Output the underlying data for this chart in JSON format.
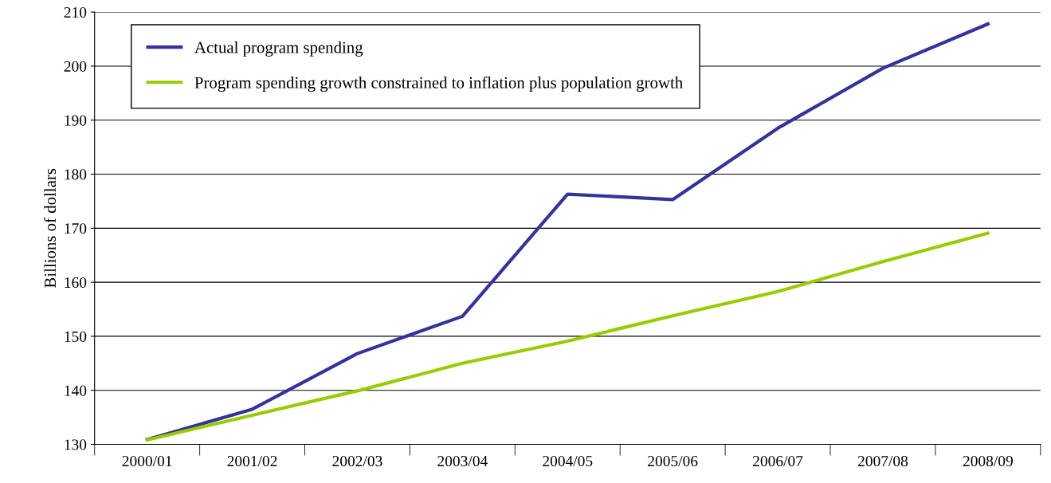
{
  "chart_data": {
    "type": "line",
    "ylabel": "Billions of dollars",
    "categories": [
      "2000/01",
      "2001/02",
      "2002/03",
      "2003/04",
      "2004/05",
      "2005/06",
      "2006/07",
      "2007/08",
      "2008/09"
    ],
    "series": [
      {
        "name": "Actual program spending",
        "color": "#333399",
        "values": [
          130.9,
          136.5,
          146.8,
          153.7,
          176.3,
          175.3,
          188.5,
          199.6,
          207.8
        ]
      },
      {
        "name": "Program spending growth constrained to inflation plus population growth",
        "color": "#99cc00",
        "values": [
          130.8,
          135.4,
          139.9,
          145.0,
          149.1,
          153.8,
          158.3,
          163.8,
          169.1
        ]
      }
    ],
    "ylim": [
      130,
      210
    ],
    "yticks": [
      130,
      140,
      150,
      160,
      170,
      180,
      190,
      200,
      210
    ],
    "grid": "y",
    "legend": "top left",
    "marker": "none",
    "line_style": "solid"
  }
}
